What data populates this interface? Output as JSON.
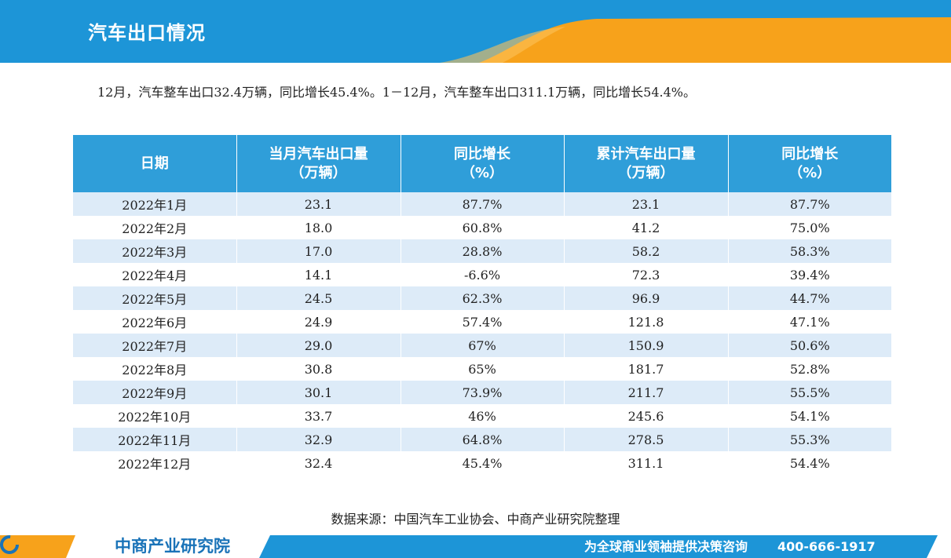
{
  "header": {
    "title": "汽车出口情况"
  },
  "summary": "12月，汽车整车出口32.4万辆，同比增长45.4%。1－12月，汽车整车出口311.1万辆，同比增长54.4%。",
  "table": {
    "headers": [
      {
        "line1": "日期",
        "line2": ""
      },
      {
        "line1": "当月汽车出口量",
        "line2": "（万辆）"
      },
      {
        "line1": "同比增长",
        "line2": "（%）"
      },
      {
        "line1": "累计汽车出口量",
        "line2": "（万辆）"
      },
      {
        "line1": "同比增长",
        "line2": "（%）"
      }
    ],
    "rows": [
      [
        "2022年1月",
        "23.1",
        "87.7%",
        "23.1",
        "87.7%"
      ],
      [
        "2022年2月",
        "18.0",
        "60.8%",
        "41.2",
        "75.0%"
      ],
      [
        "2022年3月",
        "17.0",
        "28.8%",
        "58.2",
        "58.3%"
      ],
      [
        "2022年4月",
        "14.1",
        "-6.6%",
        "72.3",
        "39.4%"
      ],
      [
        "2022年5月",
        "24.5",
        "62.3%",
        "96.9",
        "44.7%"
      ],
      [
        "2022年6月",
        "24.9",
        "57.4%",
        "121.8",
        "47.1%"
      ],
      [
        "2022年7月",
        "29.0",
        "67%",
        "150.9",
        "50.6%"
      ],
      [
        "2022年8月",
        "30.8",
        "65%",
        "181.7",
        "52.8%"
      ],
      [
        "2022年9月",
        "30.1",
        "73.9%",
        "211.7",
        "55.5%"
      ],
      [
        "2022年10月",
        "33.7",
        "46%",
        "245.6",
        "54.1%"
      ],
      [
        "2022年11月",
        "32.9",
        "64.8%",
        "278.5",
        "55.3%"
      ],
      [
        "2022年12月",
        "32.4",
        "45.4%",
        "311.1",
        "54.4%"
      ]
    ]
  },
  "source": "数据来源：中国汽车工业协会、中商产业研究院整理",
  "footer": {
    "logo_text": "中商产业研究院",
    "slogan": "为全球商业领袖提供决策咨询",
    "phone": "400-666-1917",
    "logo_icon": "zhongshang-logo-icon"
  },
  "colors": {
    "header_blue": "#1d95d7",
    "accent_orange": "#f7a21b",
    "table_header": "#2f9ed9",
    "row_stripe": "#ddebf8",
    "logo_blue": "#1a73b8"
  }
}
